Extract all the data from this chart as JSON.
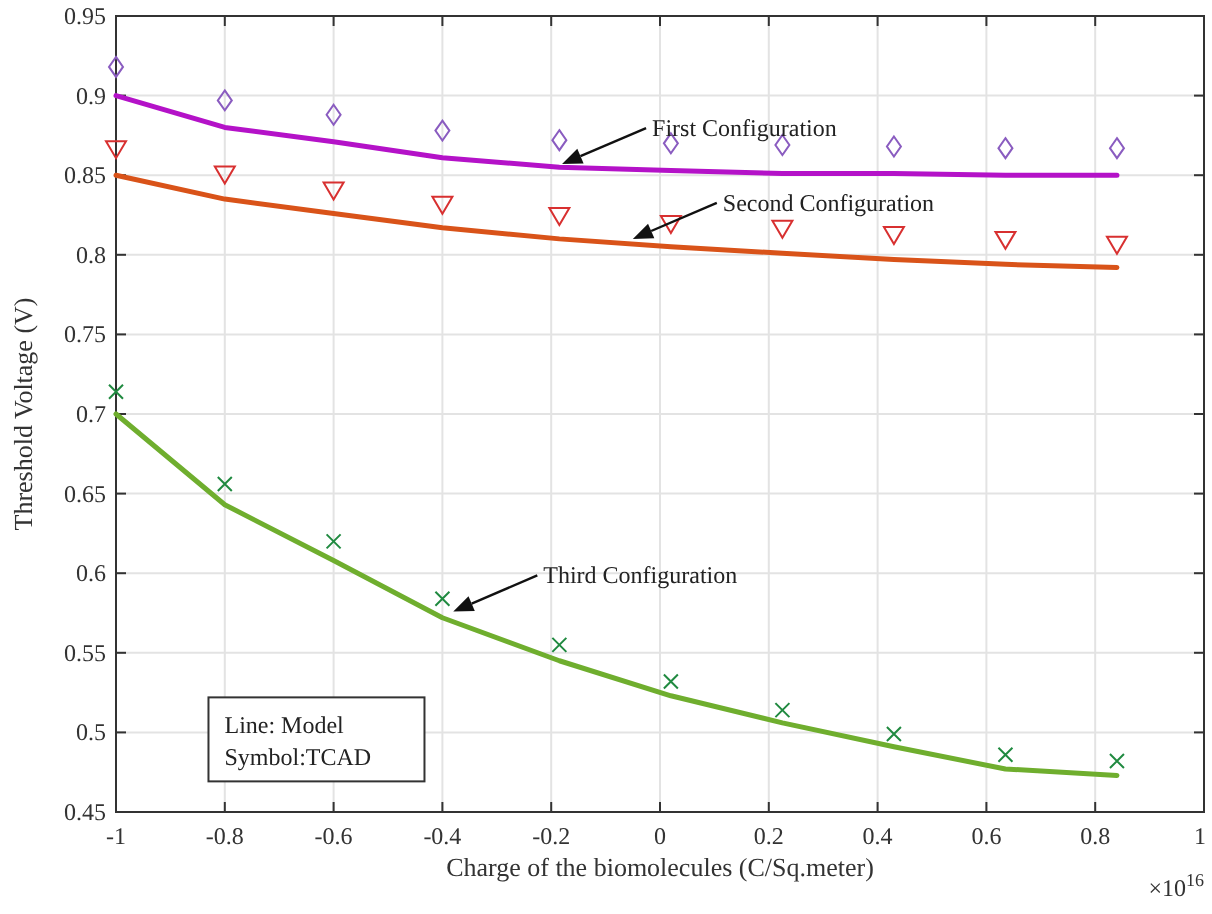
{
  "chart_data": {
    "type": "line",
    "xlabel": "Charge of the biomolecules (C/Sq.meter)",
    "ylabel": "Threshold Voltage (V)",
    "x": [
      -1,
      -0.8,
      -0.6,
      -0.4,
      -0.185,
      0.02,
      0.225,
      0.43,
      0.635,
      0.84
    ],
    "xlim": [
      -1,
      1
    ],
    "xticks": [
      -1,
      -0.8,
      -0.6,
      -0.4,
      -0.2,
      0,
      0.2,
      0.4,
      0.6,
      0.8,
      1
    ],
    "ylim": [
      0.45,
      0.95
    ],
    "yticks": [
      0.45,
      0.5,
      0.55,
      0.6,
      0.65,
      0.7,
      0.75,
      0.8,
      0.85,
      0.9,
      0.95
    ],
    "grid": true,
    "series": [
      {
        "color": "#b412c8",
        "marker": "none",
        "values": [
          0.9,
          0.88,
          0.871,
          0.861,
          0.855,
          0.853,
          0.851,
          0.851,
          0.85,
          0.85
        ]
      },
      {
        "color": "#d95319",
        "marker": "none",
        "values": [
          0.85,
          0.835,
          0.826,
          0.817,
          0.81,
          0.805,
          0.801,
          0.797,
          0.794,
          0.792
        ]
      },
      {
        "color": "#6fae2e",
        "marker": "none",
        "values": [
          0.7,
          0.643,
          0.608,
          0.572,
          0.545,
          0.523,
          0.506,
          0.491,
          0.477,
          0.473
        ]
      },
      {
        "type": "scatter",
        "color": "#8a5cc0",
        "marker": "diamond",
        "values": [
          0.918,
          0.897,
          0.888,
          0.878,
          0.872,
          0.87,
          0.869,
          0.868,
          0.867,
          0.867
        ]
      },
      {
        "type": "scatter",
        "color": "#d83030",
        "marker": "triangle",
        "values": [
          0.867,
          0.851,
          0.841,
          0.832,
          0.825,
          0.82,
          0.817,
          0.813,
          0.81,
          0.807
        ]
      },
      {
        "type": "scatter",
        "color": "#208a40",
        "marker": "cross",
        "values": [
          0.714,
          0.656,
          0.62,
          0.584,
          0.555,
          0.532,
          0.514,
          0.499,
          0.486,
          0.482
        ]
      }
    ],
    "annotations": [
      "First Configuration",
      "Second Configuration",
      "Third Configuration",
      "Line: Model",
      "Symbol:TCAD",
      "×10$^{16}$"
    ]
  }
}
